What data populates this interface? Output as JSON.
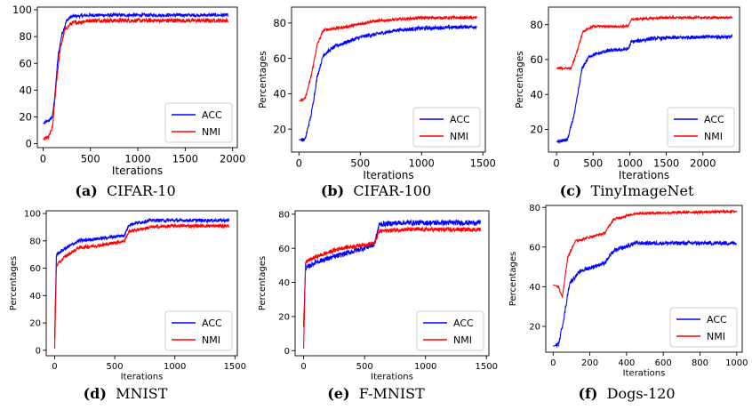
{
  "series_names": [
    "ACC",
    "NMI"
  ],
  "colors": {
    "ACC": "#0000ff",
    "NMI": "#ff0000"
  },
  "chart_data": [
    {
      "type": "line",
      "caption_letter": "(a)",
      "caption_title": "CIFAR-10",
      "xlabel": "Iterations",
      "ylabel": "",
      "xlim": [
        -60,
        2050
      ],
      "ylim": [
        -3,
        102
      ],
      "xticks": [
        0,
        500,
        1000,
        1500,
        2000
      ],
      "yticks": [
        0,
        20,
        40,
        60,
        80,
        100
      ],
      "grid": false,
      "legend": "lower-right",
      "series": [
        {
          "name": "ACC",
          "noise": 1.2,
          "points": [
            [
              0,
              15
            ],
            [
              60,
              17
            ],
            [
              100,
              20
            ],
            [
              130,
              40
            ],
            [
              160,
              66
            ],
            [
              200,
              82
            ],
            [
              250,
              92
            ],
            [
              300,
              95
            ],
            [
              500,
              96
            ],
            [
              1000,
              96
            ],
            [
              1500,
              96
            ],
            [
              1950,
              96
            ]
          ]
        },
        {
          "name": "NMI",
          "noise": 1.5,
          "points": [
            [
              0,
              3
            ],
            [
              60,
              5
            ],
            [
              100,
              12
            ],
            [
              140,
              45
            ],
            [
              180,
              70
            ],
            [
              230,
              85
            ],
            [
              300,
              90
            ],
            [
              500,
              92
            ],
            [
              1000,
              92
            ],
            [
              1500,
              92
            ],
            [
              1950,
              92
            ]
          ]
        }
      ]
    },
    {
      "type": "line",
      "caption_letter": "(b)",
      "caption_title": "CIFAR-100",
      "xlabel": "Iterations",
      "ylabel": "Percentages",
      "xlim": [
        -60,
        1520
      ],
      "ylim": [
        7,
        89
      ],
      "xticks": [
        0,
        500,
        1000,
        1500
      ],
      "yticks": [
        20,
        40,
        60,
        80
      ],
      "grid": false,
      "legend": "lower-right",
      "series": [
        {
          "name": "ACC",
          "noise": 1.0,
          "points": [
            [
              0,
              14
            ],
            [
              50,
              14
            ],
            [
              100,
              28
            ],
            [
              150,
              50
            ],
            [
              200,
              62
            ],
            [
              300,
              67
            ],
            [
              500,
              72
            ],
            [
              800,
              76
            ],
            [
              1000,
              77
            ],
            [
              1450,
              78
            ]
          ]
        },
        {
          "name": "NMI",
          "noise": 0.8,
          "points": [
            [
              0,
              36
            ],
            [
              50,
              37
            ],
            [
              100,
              50
            ],
            [
              150,
              68
            ],
            [
              200,
              76
            ],
            [
              400,
              78
            ],
            [
              600,
              81
            ],
            [
              1000,
              83
            ],
            [
              1450,
              83
            ]
          ]
        }
      ]
    },
    {
      "type": "line",
      "caption_letter": "(c)",
      "caption_title": "TinyImageNet",
      "xlabel": "Iterations",
      "ylabel": "Percentages",
      "xlim": [
        -110,
        2500
      ],
      "ylim": [
        7,
        90
      ],
      "xticks": [
        0,
        500,
        1000,
        1500,
        2000
      ],
      "yticks": [
        20,
        40,
        60,
        80
      ],
      "grid": false,
      "legend": "lower-right",
      "series": [
        {
          "name": "ACC",
          "noise": 1.0,
          "points": [
            [
              0,
              13
            ],
            [
              150,
              14
            ],
            [
              250,
              30
            ],
            [
              350,
              55
            ],
            [
              450,
              62
            ],
            [
              700,
              65
            ],
            [
              980,
              66
            ],
            [
              1020,
              70
            ],
            [
              1300,
              72
            ],
            [
              2000,
              73
            ],
            [
              2400,
              73
            ]
          ]
        },
        {
          "name": "NMI",
          "noise": 0.6,
          "points": [
            [
              0,
              55
            ],
            [
              200,
              55
            ],
            [
              260,
              62
            ],
            [
              360,
              76
            ],
            [
              500,
              79
            ],
            [
              980,
              79
            ],
            [
              1020,
              83
            ],
            [
              1500,
              84
            ],
            [
              2400,
              84
            ]
          ]
        }
      ]
    },
    {
      "type": "line",
      "caption_letter": "(d)",
      "caption_title": "MNIST",
      "xlabel": "Iterations",
      "ylabel": "Percentages",
      "xlim": [
        -70,
        1520
      ],
      "ylim": [
        -4,
        102
      ],
      "xticks": [
        0,
        500,
        1000,
        1500
      ],
      "yticks": [
        0,
        20,
        40,
        60,
        80,
        100
      ],
      "grid": false,
      "legend": "lower-right",
      "series": [
        {
          "name": "ACC",
          "noise": 1.2,
          "points": [
            [
              0,
              8
            ],
            [
              15,
              70
            ],
            [
              80,
              74
            ],
            [
              200,
              80
            ],
            [
              400,
              82
            ],
            [
              580,
              84
            ],
            [
              620,
              92
            ],
            [
              800,
              95
            ],
            [
              1000,
              95
            ],
            [
              1450,
              95
            ]
          ]
        },
        {
          "name": "NMI",
          "noise": 1.2,
          "points": [
            [
              0,
              1
            ],
            [
              15,
              62
            ],
            [
              80,
              68
            ],
            [
              200,
              75
            ],
            [
              400,
              77
            ],
            [
              580,
              80
            ],
            [
              620,
              87
            ],
            [
              800,
              90
            ],
            [
              1000,
              91
            ],
            [
              1450,
              91
            ]
          ]
        }
      ]
    },
    {
      "type": "line",
      "caption_letter": "(e)",
      "caption_title": "F-MNIST",
      "xlabel": "Iterations",
      "ylabel": "Percentages",
      "xlim": [
        -70,
        1520
      ],
      "ylim": [
        -3,
        82
      ],
      "xticks": [
        0,
        500,
        1000,
        1500
      ],
      "yticks": [
        0,
        20,
        40,
        60,
        80
      ],
      "grid": false,
      "legend": "lower-right",
      "series": [
        {
          "name": "ACC",
          "noise": 1.5,
          "points": [
            [
              0,
              14
            ],
            [
              15,
              48
            ],
            [
              100,
              52
            ],
            [
              300,
              56
            ],
            [
              580,
              62
            ],
            [
              620,
              74
            ],
            [
              800,
              75
            ],
            [
              1450,
              75
            ]
          ]
        },
        {
          "name": "NMI",
          "noise": 1.2,
          "points": [
            [
              0,
              1
            ],
            [
              15,
              52
            ],
            [
              100,
              55
            ],
            [
              300,
              60
            ],
            [
              580,
              63
            ],
            [
              620,
              70
            ],
            [
              800,
              71
            ],
            [
              1450,
              71
            ]
          ]
        }
      ]
    },
    {
      "type": "line",
      "caption_letter": "(f)",
      "caption_title": "Dogs-120",
      "xlabel": "Iterations",
      "ylabel": "Percentages",
      "xlim": [
        -40,
        1030
      ],
      "ylim": [
        7,
        81
      ],
      "xticks": [
        0,
        200,
        400,
        600,
        800,
        1000
      ],
      "yticks": [
        20,
        40,
        60,
        80
      ],
      "grid": false,
      "legend": "lower-right",
      "series": [
        {
          "name": "ACC",
          "noise": 1.0,
          "points": [
            [
              0,
              10
            ],
            [
              30,
              11
            ],
            [
              60,
              25
            ],
            [
              90,
              42
            ],
            [
              150,
              48
            ],
            [
              280,
              52
            ],
            [
              330,
              58
            ],
            [
              450,
              62
            ],
            [
              1000,
              62
            ]
          ]
        },
        {
          "name": "NMI",
          "noise": 0.6,
          "points": [
            [
              0,
              41
            ],
            [
              30,
              40
            ],
            [
              50,
              35
            ],
            [
              80,
              55
            ],
            [
              120,
              63
            ],
            [
              280,
              67
            ],
            [
              330,
              74
            ],
            [
              450,
              77
            ],
            [
              1000,
              78
            ]
          ]
        }
      ]
    }
  ]
}
